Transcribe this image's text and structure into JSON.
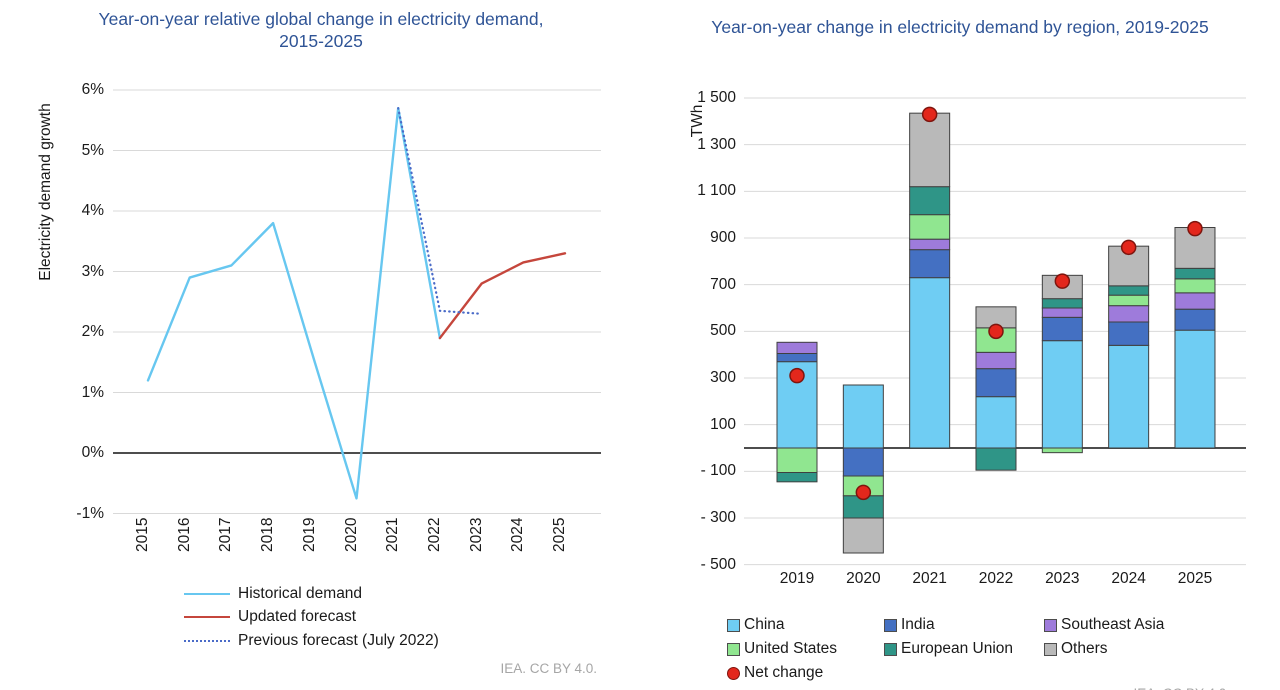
{
  "attribution": "IEA. CC BY 4.0.",
  "chart_data": [
    {
      "type": "line",
      "title_lines": [
        "Year-on-year relative global change in electricity demand,",
        "2015-2025"
      ],
      "ylabel": "Electricity demand growth",
      "x_ticks": [
        "2015",
        "2016",
        "2017",
        "2018",
        "2019",
        "2020",
        "2021",
        "2022",
        "2023",
        "2024",
        "2025"
      ],
      "ylim": [
        -1,
        6
      ],
      "grid": true,
      "legend_position": "bottom-left",
      "y_ticks": [
        {
          "value": 6,
          "label": "6%"
        },
        {
          "value": 5,
          "label": "5%"
        },
        {
          "value": 4,
          "label": "4%"
        },
        {
          "value": 3,
          "label": "3%"
        },
        {
          "value": 2,
          "label": "2%"
        },
        {
          "value": 1,
          "label": "1%"
        },
        {
          "value": 0,
          "label": "0%"
        },
        {
          "value": -1,
          "label": "-1%"
        }
      ],
      "series": [
        {
          "name": "Historical demand",
          "color": "#67C7F0",
          "style": "solid",
          "x_start": 2015,
          "values": [
            1.2,
            2.9,
            3.1,
            3.8,
            1.5,
            -0.75,
            5.7,
            1.9
          ]
        },
        {
          "name": "Updated forecast",
          "color": "#C5463C",
          "style": "solid",
          "x_start": 2022,
          "values": [
            1.9,
            2.8,
            3.15,
            3.3
          ]
        },
        {
          "name": "Previous forecast (July 2022)",
          "color": "#4A6BC8",
          "style": "dotted",
          "x_start": 2021,
          "values": [
            5.7,
            2.35,
            2.3
          ]
        }
      ]
    },
    {
      "type": "bar",
      "title": "Year-on-year change in electricity demand by region, 2019-2025",
      "ylabel": "TWh",
      "categories": [
        "2019",
        "2020",
        "2021",
        "2022",
        "2023",
        "2024",
        "2025"
      ],
      "ylim": [
        -500,
        1500
      ],
      "grid": true,
      "y_ticks": [
        {
          "value": 1500,
          "label": "1 500"
        },
        {
          "value": 1300,
          "label": "1 300"
        },
        {
          "value": 1100,
          "label": "1 100"
        },
        {
          "value": 900,
          "label": "900"
        },
        {
          "value": 700,
          "label": "700"
        },
        {
          "value": 500,
          "label": "500"
        },
        {
          "value": 300,
          "label": "300"
        },
        {
          "value": 100,
          "label": "100"
        },
        {
          "value": -100,
          "label": "- 100"
        },
        {
          "value": -300,
          "label": "- 300"
        },
        {
          "value": -500,
          "label": "- 500"
        }
      ],
      "series": [
        {
          "name": "China",
          "color": "#6FCDF3",
          "values": [
            370,
            270,
            730,
            220,
            460,
            440,
            505
          ]
        },
        {
          "name": "India",
          "color": "#4470C2",
          "values": [
            35,
            -120,
            120,
            120,
            100,
            100,
            90
          ]
        },
        {
          "name": "Southeast Asia",
          "color": "#9E7BDB",
          "values": [
            48,
            0,
            45,
            70,
            40,
            70,
            70
          ]
        },
        {
          "name": "United States",
          "color": "#90E690",
          "values": [
            -105,
            -85,
            105,
            105,
            -20,
            45,
            60
          ]
        },
        {
          "name": "European Union",
          "color": "#2F9587",
          "values": [
            -40,
            -95,
            120,
            -95,
            40,
            40,
            45
          ]
        },
        {
          "name": "Others",
          "color": "#B9B9B9",
          "values": [
            0,
            -150,
            315,
            90,
            100,
            170,
            175
          ]
        }
      ],
      "net_change": {
        "name": "Net change",
        "color": "#E3271C",
        "values": [
          310,
          -190,
          1430,
          500,
          715,
          860,
          940
        ]
      }
    }
  ]
}
